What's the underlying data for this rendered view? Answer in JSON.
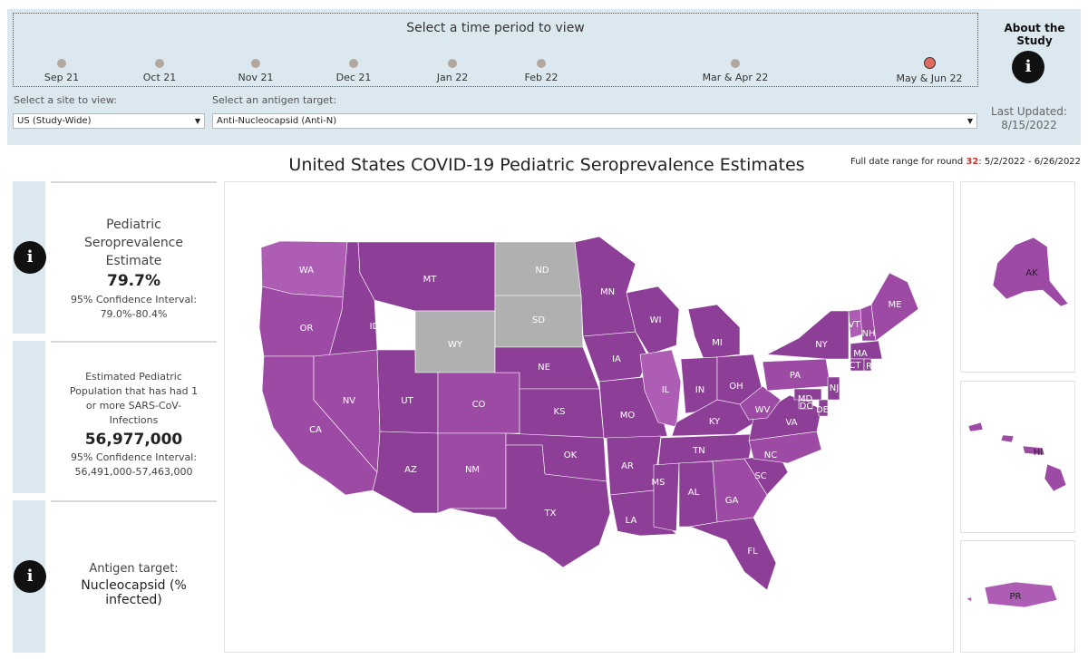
{
  "timeline": {
    "title": "Select a time period to view",
    "periods": [
      "Sep 21",
      "Oct 21",
      "Nov 21",
      "Dec 21",
      "Jan 22",
      "Feb 22",
      "Mar & Apr 22",
      "May & Jun 22"
    ],
    "selected": "May & Jun 22"
  },
  "about": {
    "title": "About the Study",
    "icon": "info-icon"
  },
  "site": {
    "label": "Select a site to view:",
    "value": "US (Study-Wide)"
  },
  "antigen": {
    "label": "Select an antigen target:",
    "value": "Anti-Nucleocapsid (Anti-N)"
  },
  "last_updated": {
    "label": "Last Updated:",
    "date": "8/15/2022"
  },
  "title": "United States  COVID-19 Pediatric Seroprevalence Estimates",
  "date_range": {
    "prefix": "Full date range for round ",
    "round": "32",
    "range": ": 5/2/2022 - 6/26/2022"
  },
  "estimate": {
    "heading": "Pediatric Seroprevalence Estimate",
    "value": "79.7%",
    "ci_label": "95% Confidence Interval:",
    "ci": "79.0%-80.4%"
  },
  "population": {
    "heading": "Estimated Pediatric Population that has had 1 or more SARS-CoV-Infections",
    "value": "56,977,000",
    "ci_label": "95% Confidence Interval:",
    "ci": "56,491,000-57,463,000"
  },
  "antigen_panel": {
    "label": "Antigen target:",
    "value": "Nucleocapsid (% infected)"
  },
  "colors": {
    "dark": "#8d3f98",
    "mid": "#9c4aa4",
    "light": "#ad5db3",
    "nodata": "#b0b0b0",
    "accent": "#e06a5f"
  },
  "map": {
    "states": [
      "WA",
      "OR",
      "CA",
      "ID",
      "NV",
      "MT",
      "WY",
      "UT",
      "AZ",
      "CO",
      "NM",
      "ND",
      "SD",
      "NE",
      "KS",
      "OK",
      "TX",
      "MN",
      "IA",
      "MO",
      "AR",
      "LA",
      "WI",
      "IL",
      "MI",
      "IN",
      "OH",
      "KY",
      "TN",
      "MS",
      "AL",
      "GA",
      "FL",
      "SC",
      "NC",
      "VA",
      "WV",
      "PA",
      "NY",
      "VT",
      "NH",
      "ME",
      "MA",
      "CT",
      "RI",
      "NJ",
      "DE",
      "MD",
      "DC"
    ],
    "no_data": [
      "ND",
      "SD",
      "WY"
    ],
    "insets": [
      "AK",
      "HI",
      "PR"
    ]
  }
}
